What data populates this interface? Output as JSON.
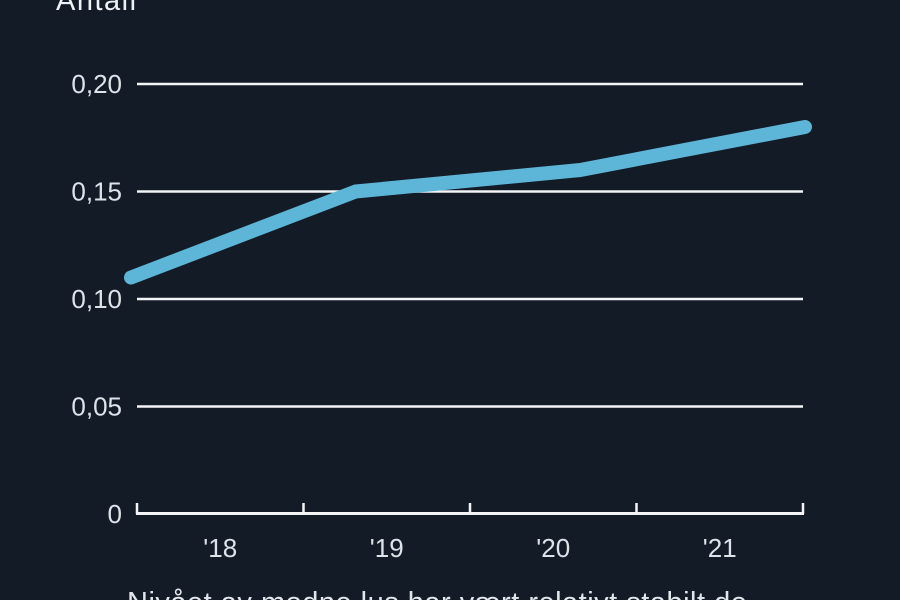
{
  "chart_data": {
    "type": "line",
    "title": "Antall",
    "caption": "Nivået av modne lus har vært relativt stabilt de",
    "categories": [
      "'18",
      "'19",
      "'20",
      "'21"
    ],
    "values": [
      0.11,
      0.15,
      0.16,
      0.18
    ],
    "ylim": [
      0,
      0.2
    ],
    "yticks": [
      {
        "value": 0,
        "label": "0"
      },
      {
        "value": 0.05,
        "label": "0,05"
      },
      {
        "value": 0.1,
        "label": "0,10"
      },
      {
        "value": 0.15,
        "label": "0,15"
      },
      {
        "value": 0.2,
        "label": "0,20"
      }
    ],
    "xlabel": "",
    "ylabel": "Antall",
    "grid": "horizontal-only",
    "legend": "none",
    "colors": {
      "background": "#131b27",
      "line": "#5db6d8",
      "grid": "#f2f4f6",
      "axis": "#f2f4f6",
      "tick_text": "#dde3e9"
    }
  }
}
